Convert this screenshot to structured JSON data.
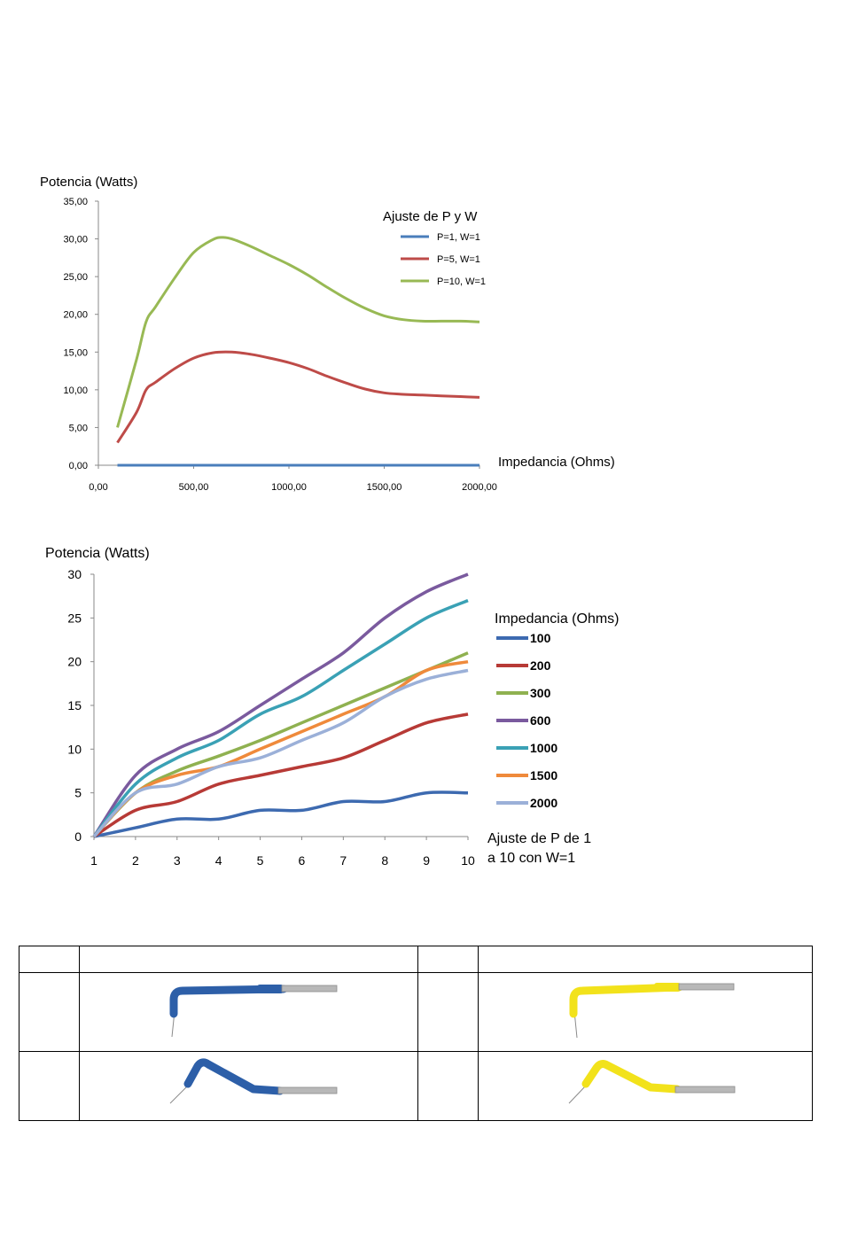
{
  "chart_data": [
    {
      "type": "line",
      "ylabel": "Potencia  (Watts)",
      "xlabel": "Impedancia (Ohms)",
      "legend_title": "Ajuste de P y W",
      "legend_position": "top-right",
      "xlim": [
        0,
        2000
      ],
      "ylim": [
        0,
        35
      ],
      "xtick_labels": [
        "0,00",
        "500,00",
        "1000,00",
        "1500,00",
        "2000,00"
      ],
      "ytick_labels": [
        "0,00",
        "5,00",
        "10,00",
        "15,00",
        "20,00",
        "25,00",
        "30,00",
        "35,00"
      ],
      "series": [
        {
          "name": "P=1, W=1",
          "color": "#4a7ebb",
          "x": [
            100,
            200,
            300,
            400,
            500,
            600,
            700,
            800,
            900,
            1000,
            1100,
            1200,
            1300,
            1400,
            1500,
            1600,
            1700,
            1800,
            1900,
            2000
          ],
          "y": [
            0,
            0,
            0,
            0,
            0,
            0,
            0,
            0,
            0,
            0,
            0,
            0,
            0,
            0,
            0,
            0,
            0,
            0,
            0,
            0
          ]
        },
        {
          "name": "P=5, W=1",
          "color": "#be4b48",
          "x": [
            100,
            200,
            250,
            300,
            400,
            500,
            600,
            700,
            800,
            900,
            1000,
            1100,
            1200,
            1300,
            1400,
            1500,
            1600,
            1700,
            1800,
            1900,
            2000
          ],
          "y": [
            3,
            7,
            10,
            11,
            12.8,
            14.2,
            14.9,
            15,
            14.7,
            14.2,
            13.6,
            12.8,
            11.8,
            10.9,
            10.1,
            9.6,
            9.4,
            9.3,
            9.2,
            9.1,
            9
          ]
        },
        {
          "name": "P=10, W=1",
          "color": "#98b954",
          "x": [
            100,
            200,
            250,
            300,
            400,
            500,
            600,
            650,
            700,
            800,
            900,
            1000,
            1100,
            1200,
            1300,
            1400,
            1500,
            1600,
            1700,
            1800,
            1900,
            2000
          ],
          "y": [
            5,
            14,
            19,
            21,
            24.8,
            28.2,
            29.9,
            30.2,
            30,
            29,
            27.8,
            26.6,
            25.2,
            23.6,
            22.1,
            20.8,
            19.8,
            19.3,
            19.1,
            19.1,
            19.1,
            19
          ]
        }
      ]
    },
    {
      "type": "line",
      "ylabel": "Potencia (Watts)",
      "xlabel": "Ajuste de P de 1 a 10 con W=1",
      "legend_title": "Impedancia (Ohms)",
      "legend_position": "right",
      "xlim": [
        1,
        10
      ],
      "ylim": [
        0,
        30
      ],
      "xtick_labels": [
        "1",
        "2",
        "3",
        "4",
        "5",
        "6",
        "7",
        "8",
        "9",
        "10"
      ],
      "ytick_labels": [
        "0",
        "5",
        "10",
        "15",
        "20",
        "25",
        "30"
      ],
      "categories": [
        1,
        2,
        3,
        4,
        5,
        6,
        7,
        8,
        9,
        10
      ],
      "series": [
        {
          "name": "100",
          "color": "#3d6ab0",
          "values": [
            0,
            1,
            2,
            2,
            3,
            3,
            4,
            4,
            5,
            5
          ]
        },
        {
          "name": "200",
          "color": "#b73a36",
          "values": [
            0,
            3,
            4,
            6,
            7,
            8,
            9,
            11,
            13,
            14
          ]
        },
        {
          "name": "300",
          "color": "#8fb150",
          "values": [
            0,
            5,
            7.5,
            9.2,
            11,
            13,
            15,
            17,
            19,
            21
          ]
        },
        {
          "name": "600",
          "color": "#7a5a9e",
          "values": [
            0,
            7,
            10,
            12,
            15,
            18,
            21,
            25,
            28,
            30
          ]
        },
        {
          "name": "1000",
          "color": "#3aa1b5",
          "values": [
            0,
            6,
            9,
            11,
            14,
            16,
            19,
            22,
            25,
            27
          ]
        },
        {
          "name": "1500",
          "color": "#ef8a3b",
          "values": [
            0,
            5,
            7,
            8,
            10,
            12,
            14,
            16,
            19,
            20
          ]
        },
        {
          "name": "2000",
          "color": "#9bb0d8",
          "values": [
            0,
            5,
            6,
            8,
            9,
            11,
            13,
            16,
            18,
            19
          ]
        }
      ]
    }
  ],
  "electrode_table": {
    "header": [
      "",
      "",
      "",
      ""
    ],
    "images": [
      {
        "shape": "bent-90-short",
        "color": "#2d5fa8"
      },
      {
        "shape": "bent-90-short",
        "color": "#f2e21b"
      },
      {
        "shape": "bent-angled",
        "color": "#2d5fa8"
      },
      {
        "shape": "bent-angled",
        "color": "#f2e21b"
      }
    ]
  }
}
